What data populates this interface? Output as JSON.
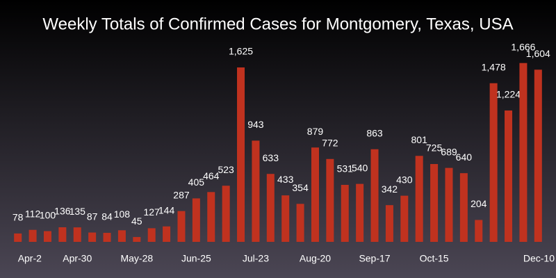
{
  "chart_data": {
    "type": "bar",
    "title": "Weekly Totals of Confirmed Cases for Montgomery, Texas, USA",
    "categories": [
      "Apr-2",
      null,
      null,
      null,
      "Apr-30",
      null,
      null,
      null,
      "May-28",
      null,
      null,
      null,
      "Jun-25",
      null,
      null,
      null,
      "Jul-23",
      null,
      null,
      null,
      "Aug-20",
      null,
      null,
      null,
      "Sep-17",
      null,
      null,
      null,
      "Oct-15",
      null,
      null,
      null,
      null,
      null,
      null,
      "Dec-10"
    ],
    "values": [
      78,
      112,
      100,
      136,
      135,
      87,
      84,
      108,
      45,
      127,
      144,
      287,
      405,
      464,
      523,
      1625,
      943,
      633,
      433,
      354,
      879,
      772,
      531,
      540,
      863,
      342,
      430,
      801,
      725,
      689,
      640,
      204,
      1478,
      1224,
      1666,
      1604
    ],
    "value_labels": [
      "78",
      "112",
      "100",
      "136",
      "135",
      "87",
      "84",
      "108",
      "45",
      "127",
      "144",
      "287",
      "405",
      "464",
      "523",
      "1,625",
      "943",
      "633",
      "433",
      "354",
      "879",
      "772",
      "531",
      "540",
      "863",
      "342",
      "430",
      "801",
      "725",
      "689",
      "640",
      "204",
      "1,478",
      "1,224",
      "1,666",
      "1,604"
    ],
    "color": "#c0321f",
    "ylim": [
      0,
      1800
    ]
  }
}
